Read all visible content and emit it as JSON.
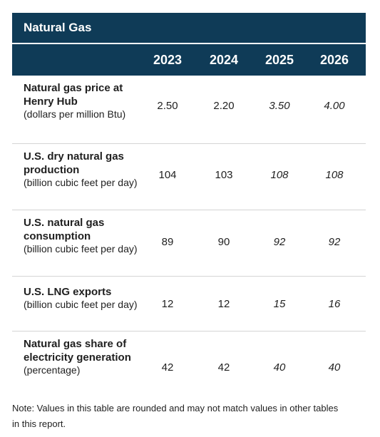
{
  "table": {
    "title": "Natural Gas",
    "years": [
      "2023",
      "2024",
      "2025",
      "2026"
    ],
    "rows": [
      {
        "label": "Natural gas price at Henry Hub",
        "unit": "(dollars per million Btu)",
        "values": [
          "2.50",
          "2.20",
          "3.50",
          "4.00"
        ]
      },
      {
        "label": "U.S. dry natural gas production",
        "unit": "(billion cubic feet per day)",
        "values": [
          "104",
          "103",
          "108",
          "108"
        ]
      },
      {
        "label": "U.S. natural gas consumption",
        "unit": "(billion cubic feet per day)",
        "values": [
          "89",
          "90",
          "92",
          "92"
        ]
      },
      {
        "label": "U.S. LNG exports",
        "unit": "(billion cubic feet per day)",
        "values": [
          "12",
          "12",
          "15",
          "16"
        ]
      },
      {
        "label": "Natural gas share of electricity generation",
        "unit": "(percentage)",
        "values": [
          "42",
          "42",
          "40",
          "40"
        ]
      }
    ],
    "note": "Note: Values in this table are rounded and may not match values in other tables in this report.",
    "colors": {
      "header_bg": "#0f3b57",
      "header_text": "#ffffff",
      "divider": "#d4d4d4"
    }
  }
}
